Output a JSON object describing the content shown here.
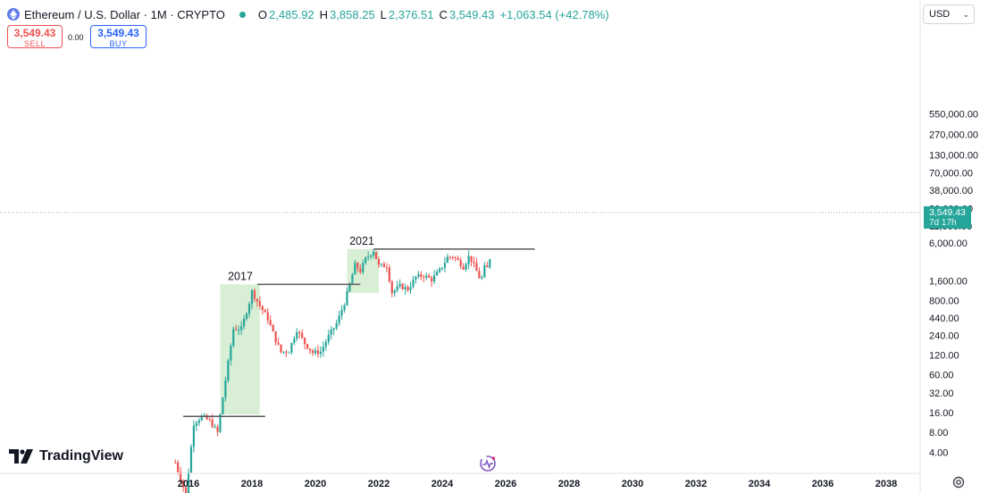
{
  "header": {
    "symbol_title": "Ethereum / U.S. Dollar · 1M · CRYPTO",
    "ohlc": [
      {
        "key": "O",
        "value": "2,485.92"
      },
      {
        "key": "H",
        "value": "3,858.25"
      },
      {
        "key": "L",
        "value": "2,376.51"
      },
      {
        "key": "C",
        "value": "3,549.43"
      }
    ],
    "change": "+1,063.54 (+42.78%)"
  },
  "trade": {
    "sell_price": "3,549.43",
    "sell_label": "SELL",
    "spread": "0.00",
    "buy_price": "3,549.43",
    "buy_label": "BUY"
  },
  "currency": "USD",
  "last_price": {
    "price": "3,549.43",
    "countdown": "7d 17h"
  },
  "brand": "TradingView",
  "colors": {
    "up": "#26a69a",
    "down": "#ef5350",
    "highlight": "#d4edd0",
    "resistance": "#595959"
  },
  "icons": {
    "settings": "gear-icon",
    "pulse": "pulse-icon",
    "logo": "tradingview-logo-icon",
    "coin": "ethereum-icon"
  },
  "chart_data": {
    "type": "candlestick",
    "scale": "log",
    "y_ticks": [
      "550,000.00",
      "270,000.00",
      "130,000.00",
      "70,000.00",
      "38,000.00",
      "20,000.00",
      "11,000.00",
      "6,000.00",
      "3,549.43",
      "1,600.00",
      "800.00",
      "440.00",
      "240.00",
      "120.00",
      "60.00",
      "32.00",
      "16.00",
      "8.00",
      "4.00"
    ],
    "x_ticks": [
      "2016",
      "2018",
      "2020",
      "2022",
      "2024",
      "2026",
      "2028",
      "2030",
      "2032",
      "2034",
      "2036",
      "2038"
    ],
    "annotations": [
      {
        "text": "2017",
        "level": 1420
      },
      {
        "text": "2021",
        "level": 4870
      }
    ],
    "highlight_periods": [
      {
        "from": "2017-01",
        "to": "2018-03",
        "low": 15,
        "high": 1420
      },
      {
        "from": "2021-01",
        "to": "2021-12",
        "low": 1050,
        "high": 4870
      }
    ],
    "resistance_lines": [
      {
        "from": "2015-11",
        "to": "2018-06",
        "value": 14
      },
      {
        "from": "2018-03",
        "to": "2021-06",
        "value": 1420
      },
      {
        "from": "2021-11",
        "to": "2026-12",
        "value": 4870
      }
    ],
    "series_points": [
      [
        "2015-08",
        2.8
      ],
      [
        "2015-12",
        0.9
      ],
      [
        "2016-03",
        11
      ],
      [
        "2016-06",
        14
      ],
      [
        "2016-09",
        12
      ],
      [
        "2016-12",
        8
      ],
      [
        "2017-03",
        50
      ],
      [
        "2017-06",
        300
      ],
      [
        "2017-09",
        300
      ],
      [
        "2017-12",
        750
      ],
      [
        "2018-01",
        1100
      ],
      [
        "2018-04",
        670
      ],
      [
        "2018-07",
        430
      ],
      [
        "2018-10",
        200
      ],
      [
        "2018-12",
        133
      ],
      [
        "2019-03",
        140
      ],
      [
        "2019-06",
        290
      ],
      [
        "2019-09",
        180
      ],
      [
        "2019-12",
        130
      ],
      [
        "2020-03",
        135
      ],
      [
        "2020-06",
        230
      ],
      [
        "2020-09",
        360
      ],
      [
        "2020-12",
        740
      ],
      [
        "2021-02",
        1420
      ],
      [
        "2021-04",
        2770
      ],
      [
        "2021-06",
        2270
      ],
      [
        "2021-08",
        3430
      ],
      [
        "2021-11",
        4630
      ],
      [
        "2022-01",
        2690
      ],
      [
        "2022-04",
        2730
      ],
      [
        "2022-06",
        1070
      ],
      [
        "2022-09",
        1330
      ],
      [
        "2022-12",
        1200
      ],
      [
        "2023-03",
        1820
      ],
      [
        "2023-06",
        1930
      ],
      [
        "2023-09",
        1670
      ],
      [
        "2023-12",
        2280
      ],
      [
        "2024-03",
        3640
      ],
      [
        "2024-05",
        3770
      ],
      [
        "2024-07",
        3230
      ],
      [
        "2024-09",
        2600
      ],
      [
        "2024-11",
        3700
      ],
      [
        "2024-12",
        3330
      ],
      [
        "2025-02",
        2240
      ],
      [
        "2025-03",
        1820
      ],
      [
        "2025-04",
        1790
      ],
      [
        "2025-05",
        2530
      ],
      [
        "2025-06",
        2485
      ],
      [
        "2025-07",
        3549.43
      ]
    ]
  }
}
